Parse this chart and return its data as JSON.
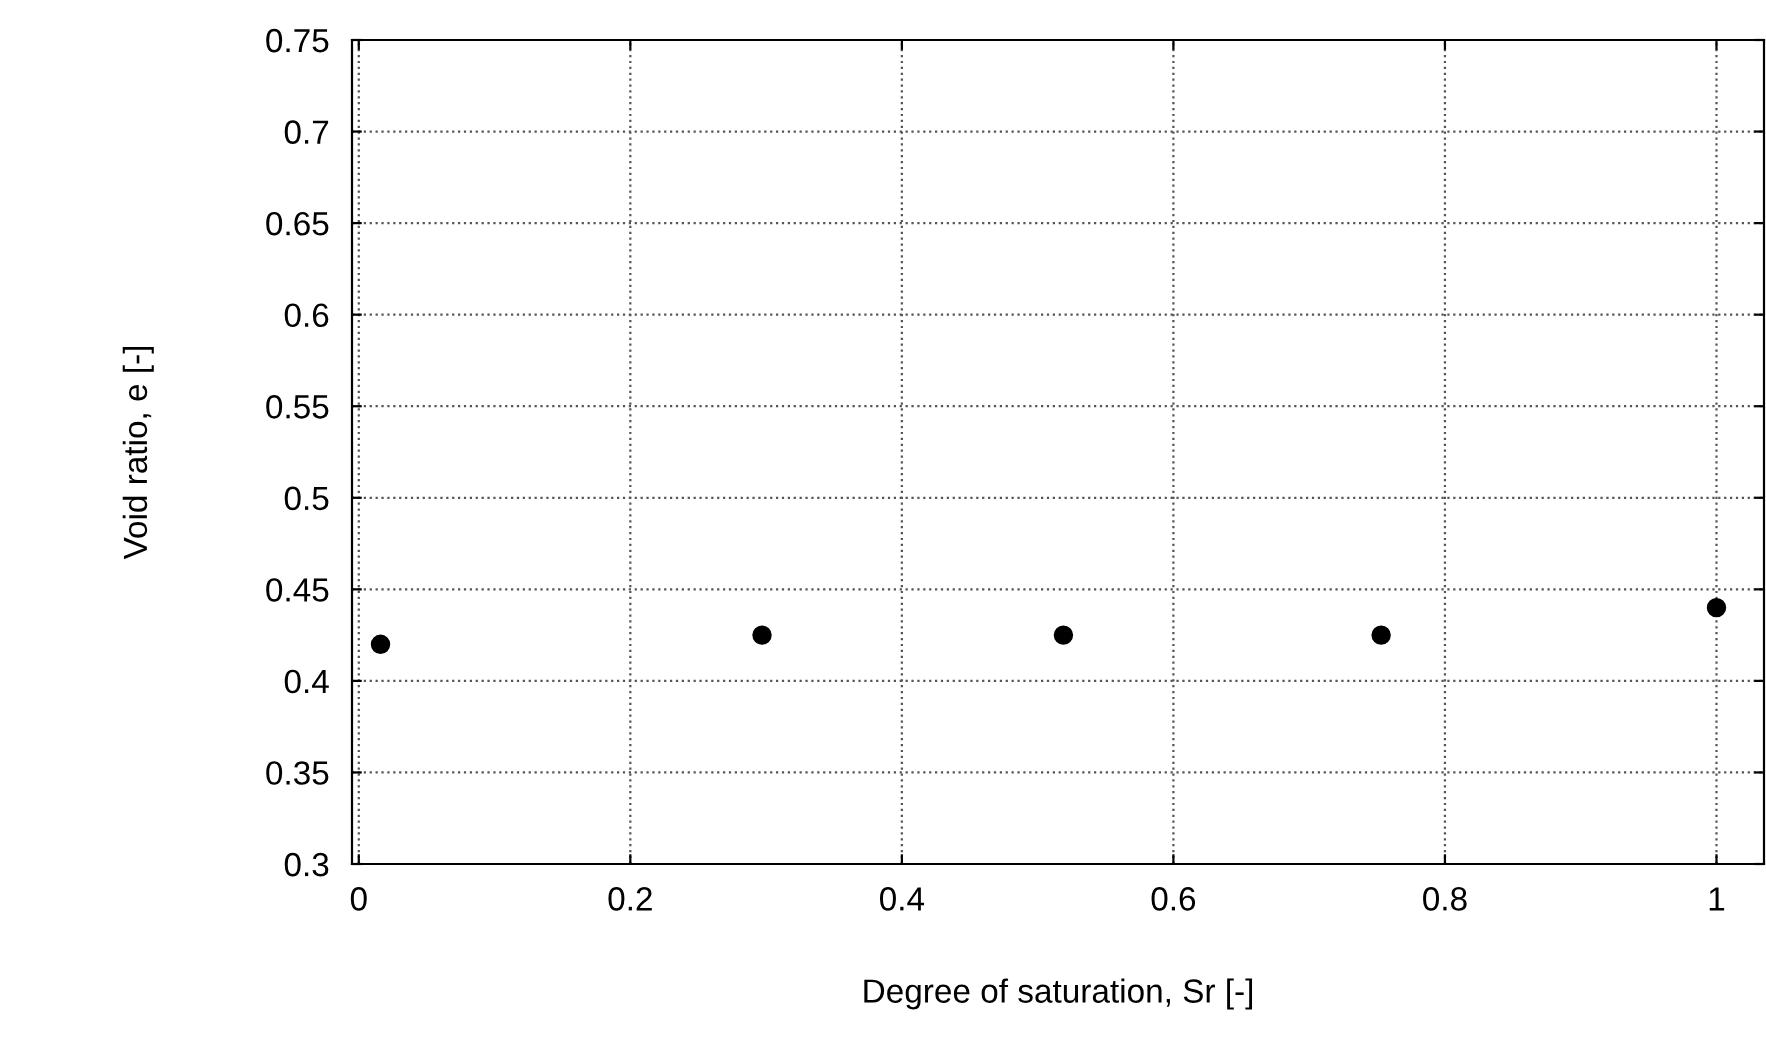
{
  "chart_data": {
    "type": "scatter",
    "xlabel": "Degree of saturation, Sr [-]",
    "ylabel": "Void ratio, e [-]",
    "x": [
      0.016,
      0.297,
      0.519,
      0.753,
      1.0
    ],
    "series": [
      {
        "color": "#000000",
        "values": [
          0.42,
          0.425,
          0.425,
          0.425,
          0.44
        ]
      }
    ],
    "xlim": [
      -0.005,
      1.035
    ],
    "xticks": [
      0,
      0.2,
      0.4,
      0.6,
      0.8,
      1
    ],
    "ylim": [
      0.3,
      0.75
    ],
    "yticks": [
      0.3,
      0.35,
      0.4,
      0.45,
      0.5,
      0.55,
      0.6,
      0.65,
      0.7,
      0.75
    ],
    "grid": true,
    "marker": "circle"
  }
}
